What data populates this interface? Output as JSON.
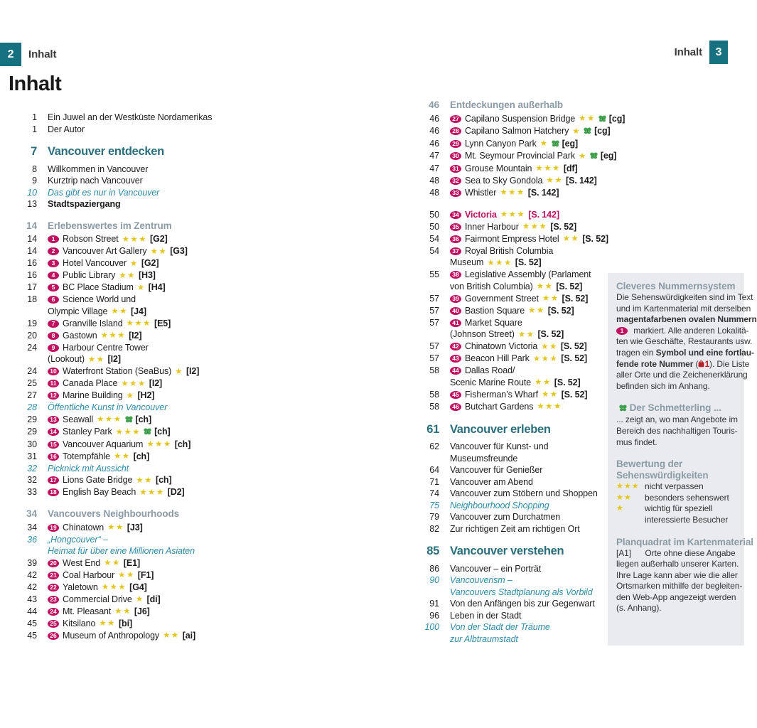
{
  "header": {
    "left_page_num": "2",
    "left_label": "Inhalt",
    "right_label": "Inhalt",
    "right_page_num": "3"
  },
  "title": "Inhalt",
  "colors": {
    "teal_box": "#15717f",
    "chapter": "#2a6f7c",
    "section": "#8b9ba5",
    "italic_entry": "#2f8ba6",
    "magenta": "#c01060",
    "star": "#e4c520",
    "butterfly_green": "#3fa34d",
    "red_number": "#b5222a",
    "sidebar_bg": "#e9ebee"
  },
  "left_column": {
    "entries": [
      {
        "type": "plain",
        "page": "1",
        "text": "Ein Juwel an der Westküste Nordamerikas"
      },
      {
        "type": "plain",
        "page": "1",
        "text": "Der Autor"
      },
      {
        "type": "chapter",
        "page": "7",
        "text": "Vancouver entdecken"
      },
      {
        "type": "plain",
        "page": "8",
        "text": "Willkommen in Vancouver"
      },
      {
        "type": "plain",
        "page": "9",
        "text": "Kurztrip nach Vancouver"
      },
      {
        "type": "italic",
        "page": "10",
        "text": "Das gibt es nur in Vancouver"
      },
      {
        "type": "bold",
        "page": "13",
        "text": "Stadtspaziergang"
      },
      {
        "type": "section",
        "page": "14",
        "text": "Erlebenswertes im Zentrum"
      },
      {
        "type": "item",
        "page": "14",
        "badge": "1",
        "text": "Robson Street",
        "stars": 3,
        "ref": "[G2]"
      },
      {
        "type": "item",
        "page": "14",
        "badge": "2",
        "text": "Vancouver Art Gallery",
        "stars": 2,
        "ref": "[G3]"
      },
      {
        "type": "item",
        "page": "16",
        "badge": "3",
        "text": "Hotel Vancouver",
        "stars": 1,
        "ref": "[G2]"
      },
      {
        "type": "item",
        "page": "16",
        "badge": "4",
        "text": "Public Library",
        "stars": 2,
        "ref": "[H3]"
      },
      {
        "type": "item",
        "page": "17",
        "badge": "5",
        "text": "BC Place Stadium",
        "stars": 1,
        "ref": "[H4]"
      },
      {
        "type": "item",
        "page": "18",
        "badge": "6",
        "text": "Science World und"
      },
      {
        "type": "cont",
        "text": "Olympic Village",
        "stars": 2,
        "ref": "[J4]"
      },
      {
        "type": "item",
        "page": "19",
        "badge": "7",
        "text": "Granville Island",
        "stars": 3,
        "ref": "[E5]"
      },
      {
        "type": "item",
        "page": "20",
        "badge": "8",
        "text": "Gastown",
        "stars": 3,
        "ref": "[I2]"
      },
      {
        "type": "item",
        "page": "24",
        "badge": "9",
        "text": "Harbour Centre Tower"
      },
      {
        "type": "cont",
        "text": "(Lookout)",
        "stars": 2,
        "ref": "[I2]"
      },
      {
        "type": "item",
        "page": "24",
        "badge": "10",
        "text": "Waterfront Station (SeaBus)",
        "stars": 1,
        "ref": "[I2]"
      },
      {
        "type": "item",
        "page": "25",
        "badge": "11",
        "text": "Canada Place",
        "stars": 3,
        "ref": "[I2]"
      },
      {
        "type": "item",
        "page": "27",
        "badge": "12",
        "text": "Marine Building",
        "stars": 1,
        "ref": "[H2]"
      },
      {
        "type": "italic",
        "page": "28",
        "text": "Öffentliche Kunst in Vancouver"
      },
      {
        "type": "item",
        "page": "29",
        "badge": "13",
        "text": "Seawall",
        "stars": 3,
        "butterfly": true,
        "ref": "[ch]"
      },
      {
        "type": "item",
        "page": "29",
        "badge": "14",
        "text": "Stanley Park",
        "stars": 3,
        "butterfly": true,
        "ref": "[ch]"
      },
      {
        "type": "item",
        "page": "30",
        "badge": "15",
        "text": "Vancouver Aquarium",
        "stars": 3,
        "ref": "[ch]"
      },
      {
        "type": "item",
        "page": "31",
        "badge": "16",
        "text": "Totempfähle",
        "stars": 2,
        "ref": "[ch]"
      },
      {
        "type": "italic",
        "page": "32",
        "text": "Picknick mit Aussicht"
      },
      {
        "type": "item",
        "page": "32",
        "badge": "17",
        "text": "Lions Gate Bridge",
        "stars": 2,
        "ref": "[ch]"
      },
      {
        "type": "item",
        "page": "33",
        "badge": "18",
        "text": "English Bay Beach",
        "stars": 3,
        "ref": "[D2]"
      },
      {
        "type": "section",
        "page": "34",
        "text": "Vancouvers Neighbourhoods"
      },
      {
        "type": "item",
        "page": "34",
        "badge": "19",
        "text": "Chinatown",
        "stars": 2,
        "ref": "[J3]"
      },
      {
        "type": "italic",
        "page": "36",
        "text": "„Hongcouver“ –"
      },
      {
        "type": "cont",
        "italic": true,
        "text": "Heimat für über eine Millionen Asiaten"
      },
      {
        "type": "item",
        "page": "39",
        "badge": "20",
        "text": "West End",
        "stars": 2,
        "ref": "[E1]"
      },
      {
        "type": "item",
        "page": "42",
        "badge": "21",
        "text": "Coal Harbour",
        "stars": 2,
        "ref": "[F1]"
      },
      {
        "type": "item",
        "page": "42",
        "badge": "22",
        "text": "Yaletown",
        "stars": 3,
        "ref": "[G4]"
      },
      {
        "type": "item",
        "page": "43",
        "badge": "23",
        "text": "Commercial Drive",
        "stars": 1,
        "ref": "[di]"
      },
      {
        "type": "item",
        "page": "44",
        "badge": "24",
        "text": "Mt. Pleasant",
        "stars": 2,
        "ref": "[J6]"
      },
      {
        "type": "item",
        "page": "45",
        "badge": "25",
        "text": "Kitsilano",
        "stars": 2,
        "ref": "[bi]"
      },
      {
        "type": "item",
        "page": "45",
        "badge": "26",
        "text": "Museum of Anthropology",
        "stars": 2,
        "ref": "[ai]"
      }
    ]
  },
  "middle_column": {
    "entries": [
      {
        "type": "section",
        "page": "46",
        "text": "Entdeckungen außerhalb"
      },
      {
        "type": "item",
        "page": "46",
        "badge": "27",
        "text": "Capilano Suspension Bridge",
        "stars": 2,
        "butterfly": true,
        "ref": "[cg]"
      },
      {
        "type": "item",
        "page": "46",
        "badge": "28",
        "text": "Capilano Salmon Hatchery",
        "stars": 1,
        "butterfly": true,
        "ref": "[cg]"
      },
      {
        "type": "item",
        "page": "46",
        "badge": "29",
        "text": "Lynn Canyon Park",
        "stars": 1,
        "butterfly": true,
        "ref": "[eg]"
      },
      {
        "type": "item",
        "page": "47",
        "badge": "30",
        "text": "Mt. Seymour Provincial Park",
        "stars": 1,
        "butterfly": true,
        "ref": "[eg]"
      },
      {
        "type": "item",
        "page": "47",
        "badge": "31",
        "text": "Grouse Mountain",
        "stars": 3,
        "ref": "[df]"
      },
      {
        "type": "item",
        "page": "48",
        "badge": "32",
        "text": "Sea to Sky Gondola",
        "stars": 2,
        "ref": "[S. 142]"
      },
      {
        "type": "item",
        "page": "48",
        "badge": "33",
        "text": "Whistler",
        "stars": 3,
        "ref": "[S. 142]"
      },
      {
        "type": "item-magenta",
        "page": "50",
        "badge": "34",
        "text": "Victoria",
        "stars": 3,
        "ref": "[S. 142]"
      },
      {
        "type": "item",
        "page": "50",
        "badge": "35",
        "text": "Inner Harbour",
        "stars": 3,
        "ref": "[S. 52]"
      },
      {
        "type": "item",
        "page": "54",
        "badge": "36",
        "text": "Fairmont Empress Hotel",
        "stars": 2,
        "ref": "[S. 52]"
      },
      {
        "type": "item",
        "page": "54",
        "badge": "37",
        "text": "Royal British Columbia"
      },
      {
        "type": "cont",
        "text": "Museum",
        "stars": 3,
        "ref": "[S. 52]"
      },
      {
        "type": "item",
        "page": "55",
        "badge": "38",
        "text": "Legislative Assembly (Parlament"
      },
      {
        "type": "cont",
        "text": "von British Columbia)",
        "stars": 2,
        "ref": "[S. 52]"
      },
      {
        "type": "item",
        "page": "57",
        "badge": "39",
        "text": "Government Street",
        "stars": 2,
        "ref": "[S. 52]"
      },
      {
        "type": "item",
        "page": "57",
        "badge": "40",
        "text": "Bastion Square",
        "stars": 2,
        "ref": "[S. 52]"
      },
      {
        "type": "item",
        "page": "57",
        "badge": "41",
        "text": "Market Square"
      },
      {
        "type": "cont",
        "text": "(Johnson Street)",
        "stars": 2,
        "ref": "[S. 52]"
      },
      {
        "type": "item",
        "page": "57",
        "badge": "42",
        "text": "Chinatown Victoria",
        "stars": 2,
        "ref": "[S. 52]"
      },
      {
        "type": "item",
        "page": "57",
        "badge": "43",
        "text": "Beacon Hill Park",
        "stars": 3,
        "ref": "[S. 52]"
      },
      {
        "type": "item",
        "page": "58",
        "badge": "44",
        "text": "Dallas Road/"
      },
      {
        "type": "cont",
        "text": "Scenic Marine Route",
        "stars": 2,
        "ref": "[S. 52]"
      },
      {
        "type": "item",
        "page": "58",
        "badge": "45",
        "text": "Fisherman’s Wharf",
        "stars": 2,
        "ref": "[S. 52]"
      },
      {
        "type": "item",
        "page": "58",
        "badge": "46",
        "text": "Butchart Gardens",
        "stars": 3
      },
      {
        "type": "chapter",
        "page": "61",
        "text": "Vancouver erleben"
      },
      {
        "type": "plain",
        "page": "62",
        "text": "Vancouver für Kunst- und"
      },
      {
        "type": "cont",
        "text": "Museumsfreunde"
      },
      {
        "type": "plain",
        "page": "64",
        "text": "Vancouver für Genießer"
      },
      {
        "type": "plain",
        "page": "71",
        "text": "Vancouver am Abend"
      },
      {
        "type": "plain",
        "page": "74",
        "text": "Vancouver zum Stöbern und Shoppen"
      },
      {
        "type": "italic",
        "page": "75",
        "text": "Neighbourhood Shopping"
      },
      {
        "type": "plain",
        "page": "79",
        "text": "Vancouver zum Durchatmen"
      },
      {
        "type": "plain",
        "page": "82",
        "text": "Zur richtigen Zeit am richtigen Ort"
      },
      {
        "type": "chapter",
        "page": "85",
        "text": "Vancouver verstehen"
      },
      {
        "type": "plain",
        "page": "86",
        "text": "Vancouver – ein Porträt"
      },
      {
        "type": "italic",
        "page": "90",
        "text": "Vancouverism –"
      },
      {
        "type": "cont",
        "italic": true,
        "text": "Vancouvers Stadtplanung als Vorbild"
      },
      {
        "type": "plain",
        "page": "91",
        "text": "Von den Anfängen bis zur Gegenwart"
      },
      {
        "type": "plain",
        "page": "96",
        "text": "Leben in der Stadt"
      },
      {
        "type": "italic",
        "page": "100",
        "text": "Von der Stadt der Träume"
      },
      {
        "type": "cont",
        "italic": true,
        "text": "zur Albtraumstadt"
      }
    ]
  },
  "sidebar": {
    "blocks": [
      {
        "title": "Cleveres Nummernsystem",
        "lines": [
          [
            {
              "t": "Die Sehenswürdigkeiten sind im Text"
            }
          ],
          [
            {
              "t": "und im Kartenmaterial mit derselben"
            }
          ],
          [
            {
              "t": "magentafarbenen ovalen Nummern",
              "b": true
            }
          ],
          [
            {
              "badge": "1"
            },
            {
              "t": " markiert. Alle anderen Lokalitä-"
            }
          ],
          [
            {
              "t": "ten wie Geschäfte, Restaurants usw."
            }
          ],
          [
            {
              "t": "tragen ein "
            },
            {
              "t": "Symbol und eine fortlau-",
              "b": true
            }
          ],
          [
            {
              "t": "fende rote Nummer",
              "b": true
            },
            {
              "t": " ("
            },
            {
              "lock": "1"
            },
            {
              "t": "). Die Liste"
            }
          ],
          [
            {
              "t": "aller Orte und die Zeichenerklärung"
            }
          ],
          [
            {
              "t": "befinden sich im Anhang."
            }
          ]
        ]
      },
      {
        "title": "Der Schmetterling ...",
        "butterfly": true,
        "lines": [
          [
            {
              "t": "... zeigt an, wo man Angebote im"
            }
          ],
          [
            {
              "t": "Bereich des nachhaltigen Touris-"
            }
          ],
          [
            {
              "t": "mus findet."
            }
          ]
        ]
      },
      {
        "title": "Bewertung der\nSehenswürdigkeiten",
        "ratings": [
          {
            "stars": 3,
            "lines": [
              "nicht verpassen"
            ]
          },
          {
            "stars": 2,
            "lines": [
              "besonders sehenswert"
            ]
          },
          {
            "stars": 1,
            "lines": [
              "wichtig für speziell",
              "interessierte Besucher"
            ]
          }
        ]
      },
      {
        "title": "Planquadrat im Kartenmaterial",
        "lines": [
          [
            {
              "t": "[A1]      Orte ohne diese Angabe"
            }
          ],
          [
            {
              "t": "liegen außerhalb unserer Karten."
            }
          ],
          [
            {
              "t": "Ihre Lage kann aber wie die aller"
            }
          ],
          [
            {
              "t": "Ortsmarken mithilfe der begleiten-"
            }
          ],
          [
            {
              "t": "den Web-App angezeigt werden"
            }
          ],
          [
            {
              "t": "(s. Anhang)."
            }
          ]
        ]
      }
    ]
  }
}
